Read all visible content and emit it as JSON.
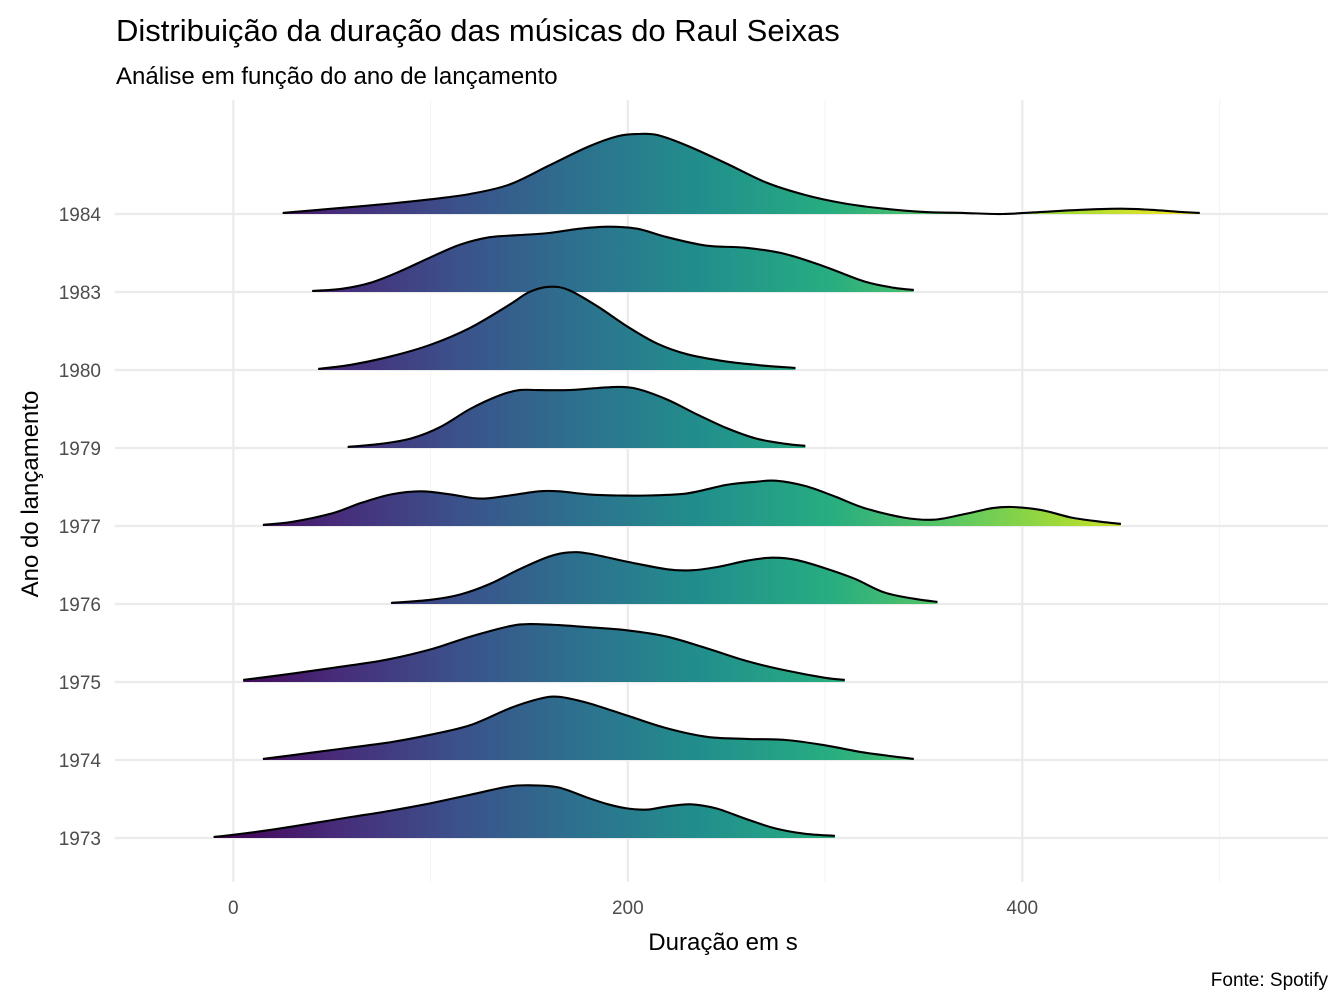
{
  "chart_data": {
    "type": "area",
    "subtype": "ridgeline",
    "title": "Distribuição da duração das músicas do Raul Seixas",
    "subtitle": "Análise em função do ano de lançamento",
    "xlabel": "Duração em s",
    "ylabel": "Ano do lançamento",
    "caption": "Fonte: Spotify",
    "xlim": [
      -60,
      555
    ],
    "x_ticks": [
      0,
      200,
      400
    ],
    "categories": [
      "1973",
      "1974",
      "1975",
      "1976",
      "1977",
      "1979",
      "1980",
      "1983",
      "1984"
    ],
    "ridge_scale_note": "height in row units (1.0 = one row spacing)",
    "fill": {
      "palette": "viridis",
      "gradient_by": "x",
      "range": [
        -10,
        490
      ],
      "stops": [
        "#440154",
        "#472c7a",
        "#3b528b",
        "#2c728e",
        "#21908c",
        "#27ad81",
        "#5cc863",
        "#aadc32",
        "#fde725"
      ]
    },
    "series": [
      {
        "name": "1973",
        "points": [
          [
            -10,
            0.01
          ],
          [
            0,
            0.03
          ],
          [
            20,
            0.08
          ],
          [
            40,
            0.14
          ],
          [
            60,
            0.2
          ],
          [
            80,
            0.26
          ],
          [
            100,
            0.33
          ],
          [
            120,
            0.41
          ],
          [
            140,
            0.49
          ],
          [
            152,
            0.5
          ],
          [
            165,
            0.48
          ],
          [
            180,
            0.38
          ],
          [
            190,
            0.32
          ],
          [
            200,
            0.28
          ],
          [
            210,
            0.27
          ],
          [
            220,
            0.3
          ],
          [
            232,
            0.32
          ],
          [
            245,
            0.28
          ],
          [
            260,
            0.18
          ],
          [
            275,
            0.09
          ],
          [
            290,
            0.04
          ],
          [
            305,
            0.02
          ]
        ]
      },
      {
        "name": "1974",
        "points": [
          [
            15,
            0.01
          ],
          [
            40,
            0.07
          ],
          [
            60,
            0.12
          ],
          [
            80,
            0.17
          ],
          [
            100,
            0.24
          ],
          [
            120,
            0.33
          ],
          [
            140,
            0.49
          ],
          [
            155,
            0.58
          ],
          [
            165,
            0.6
          ],
          [
            180,
            0.54
          ],
          [
            200,
            0.42
          ],
          [
            220,
            0.3
          ],
          [
            240,
            0.22
          ],
          [
            260,
            0.2
          ],
          [
            280,
            0.19
          ],
          [
            300,
            0.14
          ],
          [
            320,
            0.07
          ],
          [
            345,
            0.01
          ]
        ]
      },
      {
        "name": "1975",
        "points": [
          [
            5,
            0.02
          ],
          [
            30,
            0.08
          ],
          [
            60,
            0.16
          ],
          [
            80,
            0.22
          ],
          [
            100,
            0.31
          ],
          [
            120,
            0.43
          ],
          [
            140,
            0.53
          ],
          [
            150,
            0.55
          ],
          [
            165,
            0.54
          ],
          [
            180,
            0.52
          ],
          [
            200,
            0.49
          ],
          [
            220,
            0.43
          ],
          [
            240,
            0.32
          ],
          [
            260,
            0.2
          ],
          [
            280,
            0.11
          ],
          [
            300,
            0.04
          ],
          [
            310,
            0.02
          ]
        ]
      },
      {
        "name": "1976",
        "points": [
          [
            80,
            0.01
          ],
          [
            100,
            0.04
          ],
          [
            115,
            0.09
          ],
          [
            130,
            0.19
          ],
          [
            145,
            0.33
          ],
          [
            160,
            0.45
          ],
          [
            170,
            0.49
          ],
          [
            180,
            0.48
          ],
          [
            200,
            0.4
          ],
          [
            220,
            0.33
          ],
          [
            232,
            0.32
          ],
          [
            245,
            0.35
          ],
          [
            260,
            0.41
          ],
          [
            273,
            0.44
          ],
          [
            285,
            0.42
          ],
          [
            300,
            0.34
          ],
          [
            315,
            0.24
          ],
          [
            330,
            0.11
          ],
          [
            345,
            0.05
          ],
          [
            357,
            0.02
          ]
        ]
      },
      {
        "name": "1977",
        "points": [
          [
            15,
            0.01
          ],
          [
            30,
            0.04
          ],
          [
            50,
            0.12
          ],
          [
            65,
            0.22
          ],
          [
            80,
            0.3
          ],
          [
            95,
            0.33
          ],
          [
            110,
            0.3
          ],
          [
            125,
            0.26
          ],
          [
            140,
            0.29
          ],
          [
            155,
            0.33
          ],
          [
            165,
            0.33
          ],
          [
            180,
            0.3
          ],
          [
            195,
            0.29
          ],
          [
            210,
            0.29
          ],
          [
            230,
            0.31
          ],
          [
            250,
            0.39
          ],
          [
            265,
            0.42
          ],
          [
            275,
            0.43
          ],
          [
            290,
            0.38
          ],
          [
            305,
            0.28
          ],
          [
            320,
            0.17
          ],
          [
            340,
            0.08
          ],
          [
            355,
            0.06
          ],
          [
            370,
            0.11
          ],
          [
            385,
            0.17
          ],
          [
            395,
            0.18
          ],
          [
            410,
            0.15
          ],
          [
            425,
            0.08
          ],
          [
            440,
            0.04
          ],
          [
            450,
            0.02
          ]
        ]
      },
      {
        "name": "1979",
        "points": [
          [
            58,
            0.01
          ],
          [
            75,
            0.04
          ],
          [
            90,
            0.09
          ],
          [
            105,
            0.2
          ],
          [
            120,
            0.37
          ],
          [
            135,
            0.5
          ],
          [
            145,
            0.55
          ],
          [
            155,
            0.55
          ],
          [
            170,
            0.55
          ],
          [
            185,
            0.57
          ],
          [
            195,
            0.58
          ],
          [
            205,
            0.56
          ],
          [
            220,
            0.46
          ],
          [
            235,
            0.32
          ],
          [
            250,
            0.19
          ],
          [
            265,
            0.09
          ],
          [
            280,
            0.04
          ],
          [
            290,
            0.02
          ]
        ]
      },
      {
        "name": "1980",
        "points": [
          [
            43,
            0.01
          ],
          [
            60,
            0.05
          ],
          [
            80,
            0.13
          ],
          [
            100,
            0.24
          ],
          [
            120,
            0.4
          ],
          [
            140,
            0.62
          ],
          [
            150,
            0.74
          ],
          [
            160,
            0.79
          ],
          [
            170,
            0.76
          ],
          [
            185,
            0.6
          ],
          [
            200,
            0.41
          ],
          [
            215,
            0.25
          ],
          [
            230,
            0.15
          ],
          [
            250,
            0.08
          ],
          [
            270,
            0.04
          ],
          [
            285,
            0.02
          ]
        ]
      },
      {
        "name": "1983",
        "points": [
          [
            40,
            0.01
          ],
          [
            55,
            0.03
          ],
          [
            70,
            0.09
          ],
          [
            85,
            0.2
          ],
          [
            100,
            0.33
          ],
          [
            115,
            0.45
          ],
          [
            130,
            0.52
          ],
          [
            145,
            0.54
          ],
          [
            160,
            0.56
          ],
          [
            175,
            0.6
          ],
          [
            190,
            0.62
          ],
          [
            205,
            0.6
          ],
          [
            220,
            0.52
          ],
          [
            240,
            0.44
          ],
          [
            260,
            0.42
          ],
          [
            280,
            0.36
          ],
          [
            300,
            0.24
          ],
          [
            320,
            0.1
          ],
          [
            335,
            0.04
          ],
          [
            345,
            0.02
          ]
        ]
      },
      {
        "name": "1984",
        "points": [
          [
            25,
            0.01
          ],
          [
            50,
            0.05
          ],
          [
            80,
            0.1
          ],
          [
            100,
            0.14
          ],
          [
            120,
            0.19
          ],
          [
            140,
            0.28
          ],
          [
            160,
            0.46
          ],
          [
            180,
            0.64
          ],
          [
            195,
            0.74
          ],
          [
            205,
            0.76
          ],
          [
            215,
            0.75
          ],
          [
            230,
            0.65
          ],
          [
            250,
            0.48
          ],
          [
            270,
            0.3
          ],
          [
            290,
            0.18
          ],
          [
            310,
            0.1
          ],
          [
            330,
            0.05
          ],
          [
            350,
            0.02
          ],
          [
            370,
            0.01
          ],
          [
            390,
            0.0
          ],
          [
            410,
            0.02
          ],
          [
            430,
            0.04
          ],
          [
            450,
            0.05
          ],
          [
            465,
            0.04
          ],
          [
            480,
            0.02
          ],
          [
            490,
            0.01
          ]
        ]
      }
    ]
  }
}
